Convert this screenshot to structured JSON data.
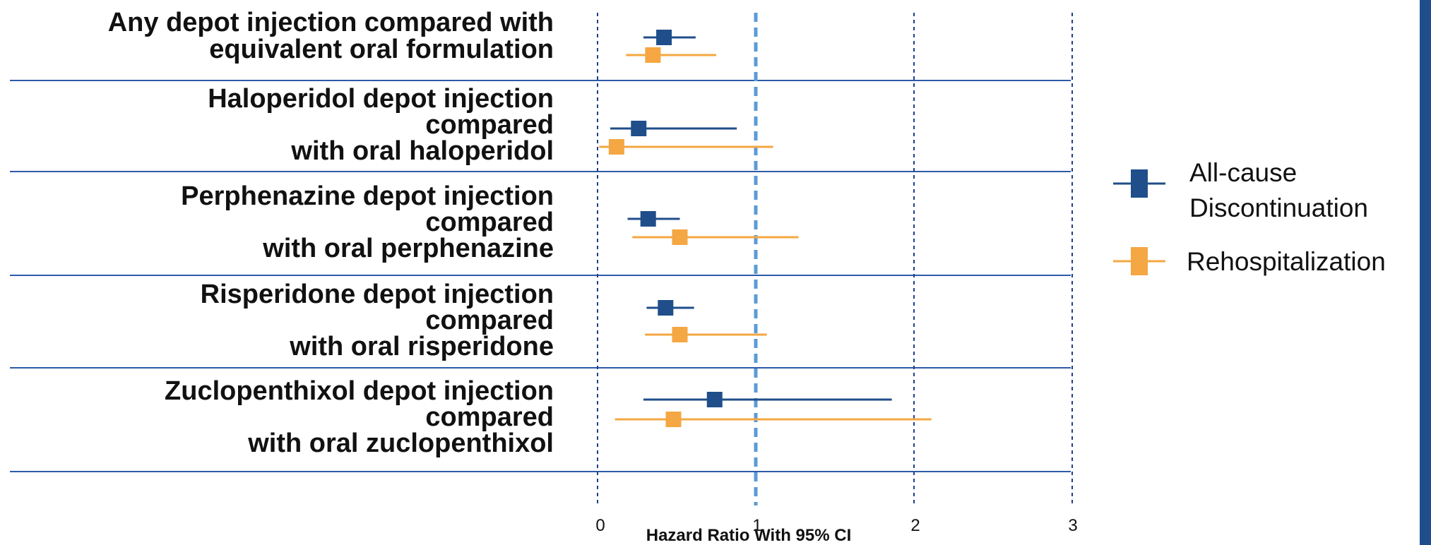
{
  "chart_data": {
    "type": "forest",
    "xlabel": "Hazard Ratio With 95% CI",
    "xlim": [
      0,
      3
    ],
    "x_ticks": [
      "0",
      "1",
      "2",
      "3"
    ],
    "reference_line": 1,
    "grid": true,
    "legend_position": "right",
    "series": [
      {
        "name": "All-cause Discontinuation",
        "color": "#1f4e8a"
      },
      {
        "name": "Rehospitalization",
        "color": "#f4a742"
      }
    ],
    "rows": [
      {
        "label": [
          "Any depot injection compared with",
          "equivalent oral formulation"
        ],
        "discontinuation": {
          "hr": 0.42,
          "lo": 0.29,
          "hi": 0.62
        },
        "rehospitalization": {
          "hr": 0.35,
          "lo": 0.18,
          "hi": 0.75
        }
      },
      {
        "label": [
          "Haloperidol depot injection",
          "compared",
          "with oral haloperidol"
        ],
        "discontinuation": {
          "hr": 0.26,
          "lo": 0.08,
          "hi": 0.88
        },
        "rehospitalization": {
          "hr": 0.12,
          "lo": 0.01,
          "hi": 1.11
        }
      },
      {
        "label": [
          "Perphenazine depot injection",
          "compared",
          "with oral perphenazine"
        ],
        "discontinuation": {
          "hr": 0.32,
          "lo": 0.19,
          "hi": 0.52
        },
        "rehospitalization": {
          "hr": 0.52,
          "lo": 0.22,
          "hi": 1.27
        }
      },
      {
        "label": [
          "Risperidone depot injection",
          "compared",
          "with oral risperidone"
        ],
        "discontinuation": {
          "hr": 0.43,
          "lo": 0.31,
          "hi": 0.61
        },
        "rehospitalization": {
          "hr": 0.52,
          "lo": 0.3,
          "hi": 1.07
        }
      },
      {
        "label": [
          "Zuclopenthixol depot injection",
          "compared",
          "with oral zuclopenthixol"
        ],
        "discontinuation": {
          "hr": 0.74,
          "lo": 0.29,
          "hi": 1.86
        },
        "rehospitalization": {
          "hr": 0.48,
          "lo": 0.11,
          "hi": 2.11
        }
      }
    ]
  }
}
